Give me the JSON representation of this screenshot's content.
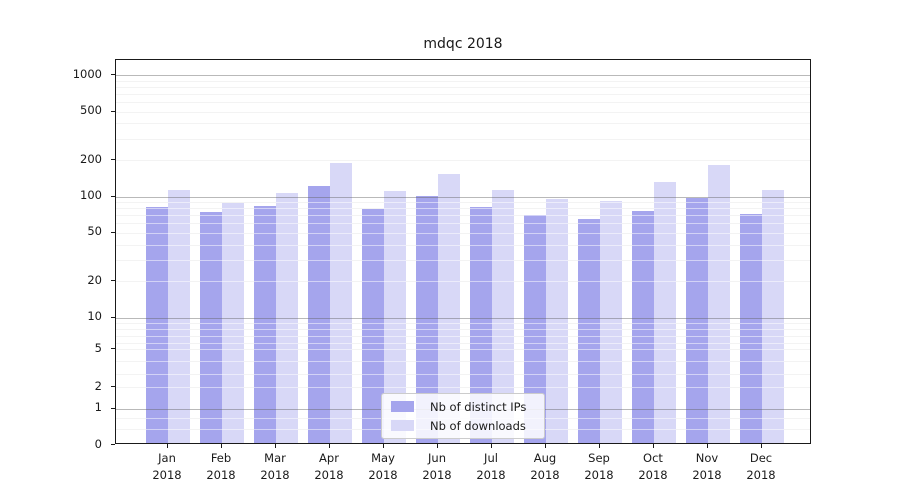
{
  "chart_data": {
    "type": "bar",
    "title": "mdqc 2018",
    "x_months": [
      "Jan",
      "Feb",
      "Mar",
      "Apr",
      "May",
      "Jun",
      "Jul",
      "Aug",
      "Sep",
      "Oct",
      "Nov",
      "Dec"
    ],
    "x_year": "2018",
    "series": [
      {
        "name": "Nb of distinct IPs",
        "color": "#a5a5ed",
        "values": [
          80,
          73,
          82,
          120,
          77,
          100,
          80,
          69,
          64,
          74,
          95,
          70
        ]
      },
      {
        "name": "Nb of downloads",
        "color": "#d8d8f7",
        "values": [
          110,
          87,
          104,
          185,
          109,
          150,
          110,
          93,
          90,
          130,
          179,
          112
        ]
      }
    ],
    "y_scale": "symlog",
    "y_ticks": [
      1000,
      500,
      200,
      100,
      50,
      20,
      10,
      5,
      2,
      1,
      0
    ],
    "y_axis_top_value": 1300,
    "grid": true,
    "legend_position": "lower center"
  }
}
